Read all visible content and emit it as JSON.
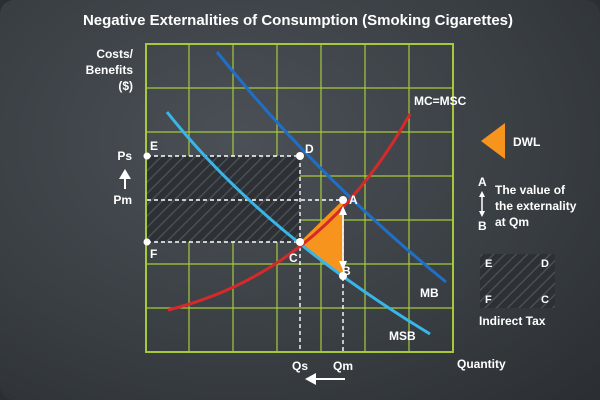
{
  "title": "Negative Externalities of Consumption (Smoking Cigarettes)",
  "y_axis_label": [
    "Costs/",
    "Benefits",
    "($)"
  ],
  "x_axis_label": "Quantity",
  "price_labels": {
    "ps": "Ps",
    "pm": "Pm"
  },
  "quantity_labels": {
    "qs": "Qs",
    "qm": "Qm"
  },
  "curve_labels": {
    "mc_msc": "MC=MSC",
    "mb": "MB",
    "msb": "MSB"
  },
  "points": {
    "a": "A",
    "b": "B",
    "c": "C",
    "d": "D",
    "e": "E",
    "f": "F"
  },
  "legend": {
    "dwl": "DWL",
    "externality_top": "A",
    "externality_bottom": "B",
    "externality_text": [
      "The value of",
      "the externality",
      "at Qm"
    ],
    "tax_corners": {
      "e": "E",
      "d": "D",
      "f": "F",
      "c": "C"
    },
    "tax_label": "Indirect Tax"
  },
  "colors": {
    "grid": "#a6c93a",
    "mb": "#1f6fc8",
    "msb": "#38b6e8",
    "mc": "#d42a2a",
    "dwl": "#f7941d"
  }
}
